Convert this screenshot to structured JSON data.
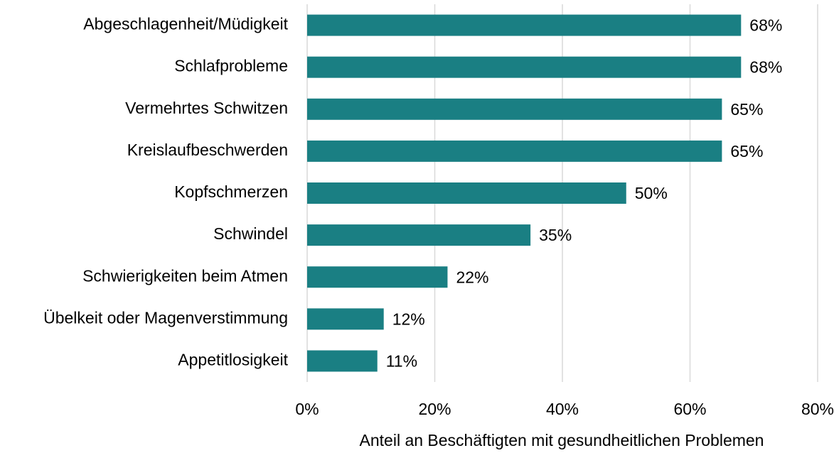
{
  "chart_data": {
    "type": "barh",
    "categories": [
      "Abgeschlagenheit/Müdigkeit",
      "Schlafprobleme",
      "Vermehrtes Schwitzen",
      "Kreislaufbeschwerden",
      "Kopfschmerzen",
      "Schwindel",
      "Schwierigkeiten beim Atmen",
      "Übelkeit oder Magenverstimmung",
      "Appetitlosigkeit"
    ],
    "values": [
      68,
      68,
      65,
      65,
      50,
      35,
      22,
      12,
      11
    ],
    "value_labels": [
      "68%",
      "68%",
      "65%",
      "65%",
      "50%",
      "35%",
      "22%",
      "12%",
      "11%"
    ],
    "color": "#1a7f83",
    "xlim": [
      0,
      80
    ],
    "xticks": [
      {
        "value": 0,
        "label": "0%"
      },
      {
        "value": 20,
        "label": "20%"
      },
      {
        "value": 40,
        "label": "40%"
      },
      {
        "value": 60,
        "label": "60%"
      },
      {
        "value": 80,
        "label": "80%"
      }
    ],
    "xlabel": "Anteil an Beschäftigten mit gesundheitlichen Problemen",
    "grid": true
  }
}
